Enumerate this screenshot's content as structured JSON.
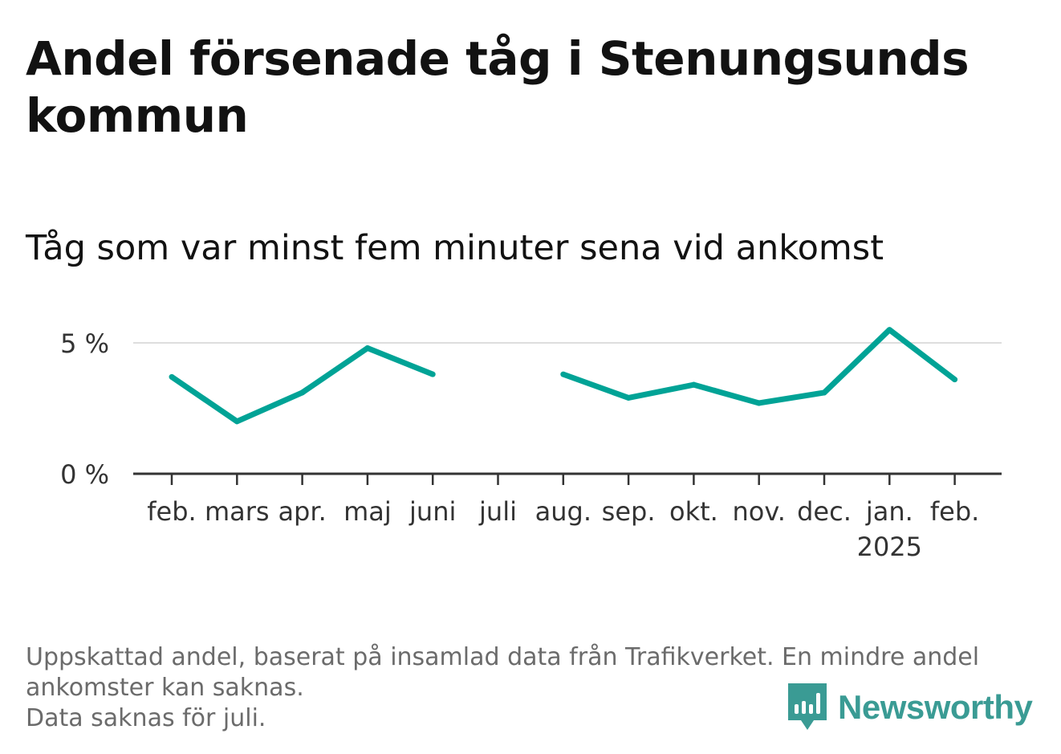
{
  "chart_data": {
    "type": "line",
    "title": "Andel försenade tåg i Stenungsunds kommun",
    "subtitle": "Tåg som var minst fem minuter sena vid ankomst",
    "categories": [
      "feb.",
      "mars",
      "apr.",
      "maj",
      "juni",
      "juli",
      "aug.",
      "sep.",
      "okt.",
      "nov.",
      "dec.",
      "jan.",
      "feb."
    ],
    "year_label": "2025",
    "year_label_category_index": 11,
    "series": [
      {
        "color": "#00a396",
        "values": [
          3.7,
          2.0,
          3.1,
          4.8,
          3.8,
          null,
          3.8,
          2.9,
          3.4,
          2.7,
          3.1,
          5.5,
          3.6
        ]
      }
    ],
    "ylim": [
      0,
      5.5
    ],
    "yticks": [
      {
        "value": 0,
        "label": "0 %"
      },
      {
        "value": 5,
        "label": "5 %"
      }
    ],
    "grid": true,
    "xlabel": "",
    "ylabel": ""
  },
  "footnote": {
    "line1": "Uppskattad andel, baserat på insamlad data från Trafikverket. En mindre andel ankomster kan saknas.",
    "line2": "Data saknas för juli."
  },
  "brand": {
    "name": "Newsworthy",
    "icon": "newsworthy-logo-icon",
    "color": "#3a9b94"
  }
}
